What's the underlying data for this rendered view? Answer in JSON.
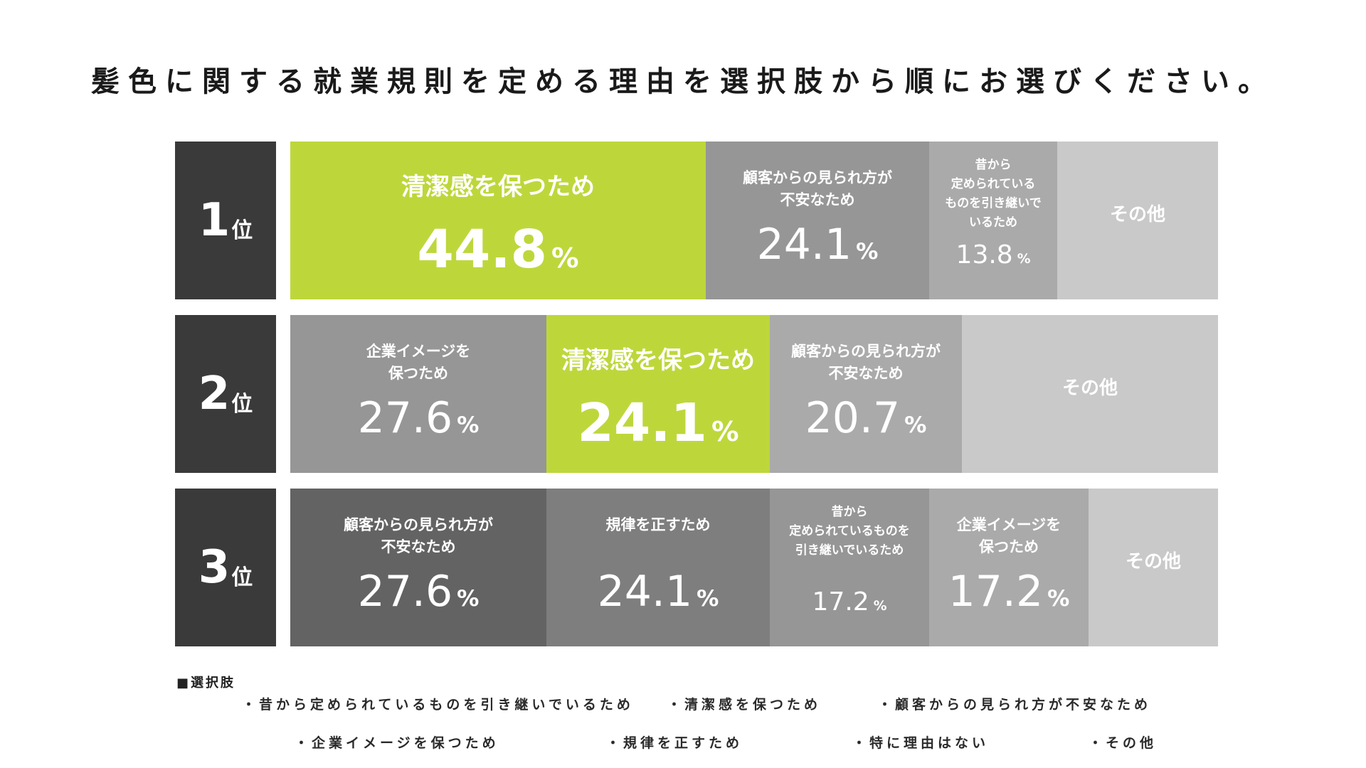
{
  "title": "髪色に関する就業規則を定める理由を選択肢から順にお選びください。",
  "colors": {
    "rank_box": "#3a3a3a",
    "highlight": "#bdd73b",
    "seg_dark": "#636363",
    "seg_mid": "#7e7e7e",
    "seg_gray": "#969696",
    "seg_light": "#aaaaaa",
    "seg_pale": "#c9c9c9"
  },
  "chart_data": {
    "type": "bar",
    "stacked": true,
    "orientation": "horizontal",
    "unit": "%",
    "rows": [
      {
        "rank": "1",
        "rank_suffix": "位",
        "segments": [
          {
            "label": "清潔感を保つため",
            "value": 44.8,
            "value_text": "44.8",
            "color": "#bdd73b",
            "highlight": true
          },
          {
            "label": "顧客からの見られ方が\n不安なため",
            "value": 24.1,
            "value_text": "24.1",
            "color": "#969696"
          },
          {
            "label": "昔から\n定められている\nものを引き継いで\nいるため",
            "value": 13.8,
            "value_text": "13.8",
            "color": "#aaaaaa",
            "small": true
          },
          {
            "label": "その他",
            "value": 17.3,
            "value_text": "",
            "color": "#c9c9c9",
            "other": true
          }
        ]
      },
      {
        "rank": "2",
        "rank_suffix": "位",
        "segments": [
          {
            "label": "企業イメージを\n保つため",
            "value": 27.6,
            "value_text": "27.6",
            "color": "#969696"
          },
          {
            "label": "清潔感を保つため",
            "value": 24.1,
            "value_text": "24.1",
            "color": "#bdd73b",
            "highlight": true
          },
          {
            "label": "顧客からの見られ方が\n不安なため",
            "value": 20.7,
            "value_text": "20.7",
            "color": "#aaaaaa"
          },
          {
            "label": "その他",
            "value": 27.6,
            "value_text": "",
            "color": "#c9c9c9",
            "other": true
          }
        ]
      },
      {
        "rank": "3",
        "rank_suffix": "位",
        "segments": [
          {
            "label": "顧客からの見られ方が\n不安なため",
            "value": 27.6,
            "value_text": "27.6",
            "color": "#636363"
          },
          {
            "label": "規律を正すため",
            "value": 24.1,
            "value_text": "24.1",
            "color": "#7e7e7e"
          },
          {
            "label": "昔から\n定められているものを\n引き継いでいるため",
            "value": 17.2,
            "value_text": "17.2",
            "color": "#969696",
            "small": true
          },
          {
            "label": "企業イメージを\n保つため",
            "value": 17.2,
            "value_text": "17.2",
            "color": "#aaaaaa"
          },
          {
            "label": "その他",
            "value": 13.9,
            "value_text": "",
            "color": "#c9c9c9",
            "other": true
          }
        ]
      }
    ]
  },
  "legend": {
    "heading": "■選択肢",
    "items": [
      "・昔から定められているものを引き継いでいるため",
      "・清潔感を保つため",
      "・顧客からの見られ方が不安なため",
      "・企業イメージを保つため",
      "・規律を正すため",
      "・特に理由はない",
      "・その他"
    ]
  }
}
